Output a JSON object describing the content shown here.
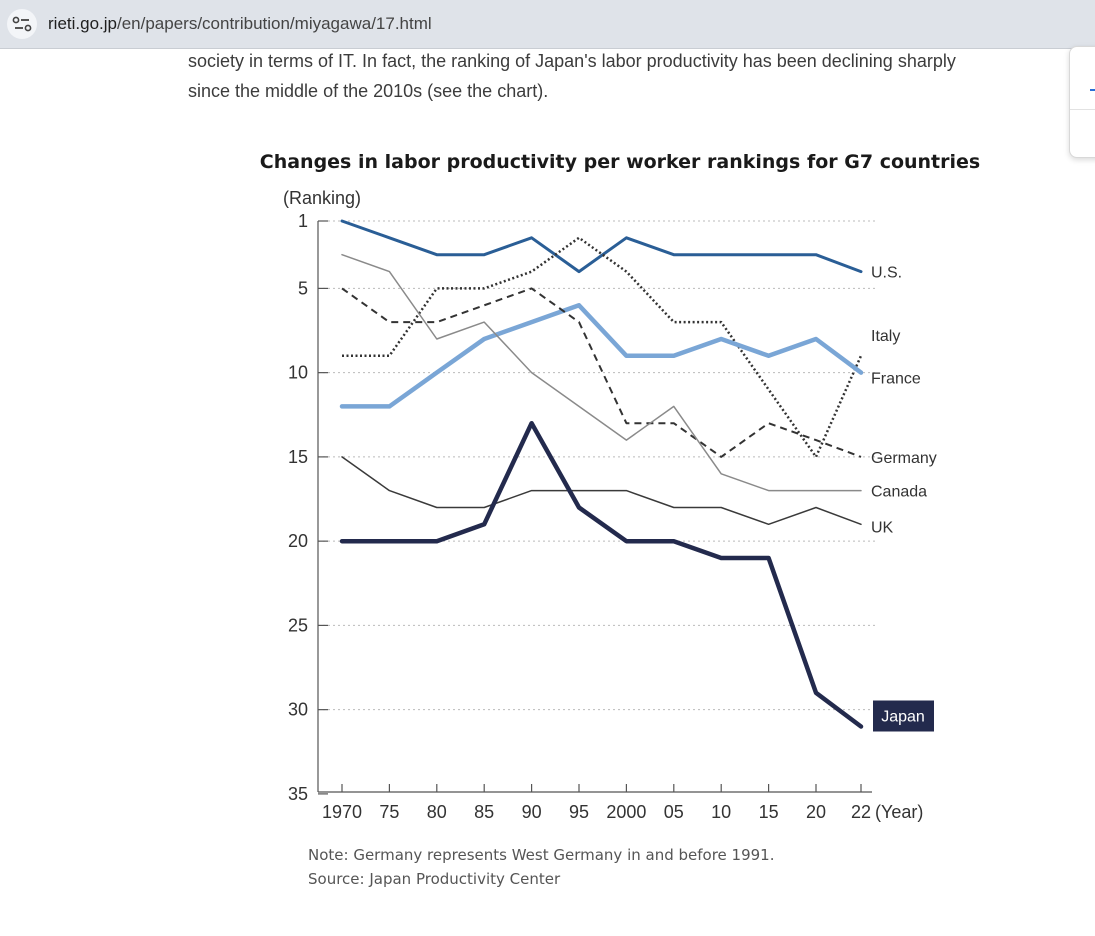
{
  "browser": {
    "url_domain": "rieti.go.jp",
    "url_path": "/en/papers/contribution/miyagawa/17.html"
  },
  "article": {
    "line1": "society in terms of IT. In fact, the ranking of Japan's labor productivity has been declining sharply",
    "line2": "since the middle of the 2010s (see the chart)."
  },
  "notes": {
    "note": "Note: Germany represents West Germany in and before 1991.",
    "source": "Source: Japan Productivity Center"
  },
  "chart_data": {
    "type": "line",
    "title": "Changes in labor productivity per worker rankings for G7 countries",
    "ylabel": "(Ranking)",
    "xlabel": "(Year)",
    "ylim": [
      1,
      35
    ],
    "y_inverted": true,
    "yticks": [
      1,
      5,
      10,
      15,
      20,
      25,
      30,
      35
    ],
    "x": [
      1970,
      1975,
      1980,
      1985,
      1990,
      1995,
      2000,
      2005,
      2010,
      2015,
      2020,
      2022
    ],
    "xtick_labels": [
      "1970",
      "75",
      "80",
      "85",
      "90",
      "95",
      "2000",
      "05",
      "10",
      "15",
      "20",
      "22"
    ],
    "grid": "dotted horizontal at each y tick",
    "series": [
      {
        "name": "U.S.",
        "style": "solid",
        "color": "#2a5e96",
        "width": 3,
        "values": [
          1,
          2,
          3,
          3,
          2,
          4,
          2,
          3,
          3,
          3,
          3,
          4
        ]
      },
      {
        "name": "Italy",
        "style": "dotted",
        "color": "#333333",
        "width": 2.5,
        "values": [
          9,
          9,
          5,
          5,
          4,
          2,
          4,
          7,
          7,
          11,
          15,
          9
        ]
      },
      {
        "name": "France",
        "style": "solid",
        "color": "#7aa6d6",
        "width": 4.5,
        "values": [
          12,
          12,
          10,
          8,
          7,
          6,
          9,
          9,
          8,
          9,
          8,
          10
        ]
      },
      {
        "name": "Germany",
        "style": "dashed",
        "color": "#333333",
        "width": 2,
        "values": [
          5,
          7,
          7,
          6,
          5,
          7,
          13,
          13,
          15,
          13,
          14,
          15
        ]
      },
      {
        "name": "Canada",
        "style": "solid",
        "color": "#8a8a8a",
        "width": 1.5,
        "values": [
          3,
          4,
          8,
          7,
          10,
          12,
          14,
          12,
          16,
          17,
          17,
          17
        ]
      },
      {
        "name": "UK",
        "style": "solid",
        "color": "#3a3a3a",
        "width": 1.5,
        "values": [
          15,
          17,
          18,
          18,
          17,
          17,
          17,
          18,
          18,
          19,
          18,
          19
        ]
      },
      {
        "name": "Japan",
        "style": "solid",
        "color": "#232a4d",
        "width": 4.5,
        "values": [
          20,
          20,
          20,
          19,
          13,
          18,
          20,
          20,
          21,
          21,
          29,
          31
        ]
      }
    ]
  }
}
